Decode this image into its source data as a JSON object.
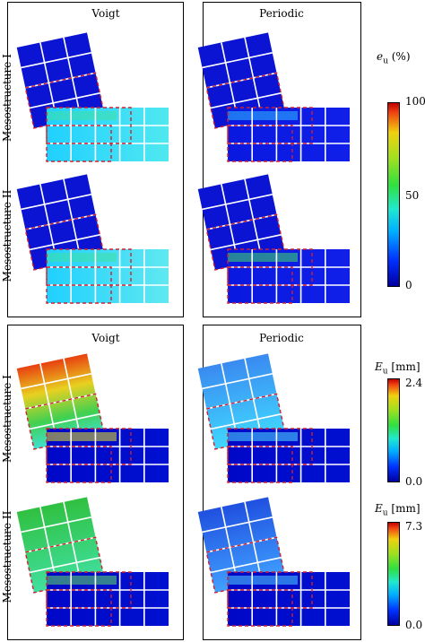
{
  "top": {
    "col_titles": [
      "Voigt",
      "Periodic"
    ],
    "row_labels": [
      "Mesostructure I",
      "Mesostructure II"
    ],
    "colorbar": {
      "title_main": "e",
      "title_sub": "u",
      "title_unit": "(%)",
      "ticks": [
        "100",
        "50",
        "0"
      ]
    }
  },
  "bottom": {
    "col_titles": [
      "Voigt",
      "Periodic"
    ],
    "row_labels": [
      "Mesostructure I",
      "Mesostructure II"
    ],
    "colorbar_1": {
      "title_main": "E",
      "title_sub": "u",
      "title_unit": "[mm]",
      "ticks": [
        "2.4",
        "0.0"
      ]
    },
    "colorbar_2": {
      "title_main": "E",
      "title_sub": "u",
      "title_unit": "[mm]",
      "ticks": [
        "7.3",
        "0.0"
      ]
    }
  },
  "colors": {
    "background_field": "#0000c8",
    "low_blue": "#0a14d2",
    "cyan": "#2ad4ff",
    "green": "#30d040",
    "yellow": "#e8e020",
    "red": "#e02010",
    "dashed_outline": "#d02030",
    "grid_lines": "#ffffff"
  }
}
